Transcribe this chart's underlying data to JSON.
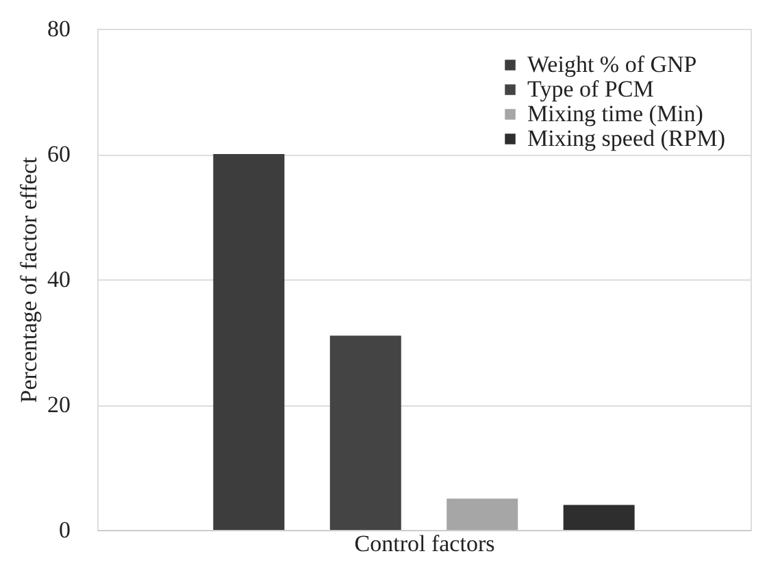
{
  "chart_data": {
    "type": "bar",
    "xlabel": "Control factors",
    "ylabel": "Percentage of factor effect",
    "categories": [
      null
    ],
    "series": [
      {
        "name": "Weight % of GNP",
        "color": "#3d3d3d",
        "values": [
          60
        ]
      },
      {
        "name": "Type of PCM",
        "color": "#444444",
        "values": [
          31
        ]
      },
      {
        "name": "Mixing time (Min)",
        "color": "#a6a6a6",
        "values": [
          5
        ]
      },
      {
        "name": "Mixing speed (RPM)",
        "color": "#2e2e2e",
        "values": [
          4
        ]
      }
    ],
    "ylim": [
      0,
      80
    ],
    "yticks": [
      0,
      20,
      40,
      60,
      80
    ],
    "grid": "y",
    "legend": "top right"
  }
}
